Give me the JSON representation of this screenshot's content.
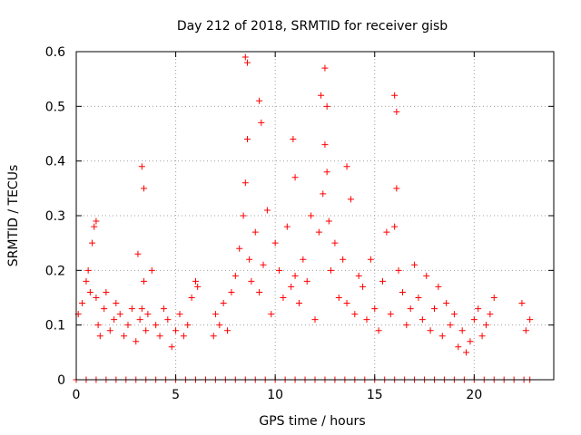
{
  "chart_data": {
    "type": "scatter",
    "title": "Day 212 of 2018, SRMTID for receiver gisb",
    "xlabel": "GPS time / hours",
    "ylabel": "SRMTID / TECUs",
    "xlim": [
      0,
      24
    ],
    "ylim": [
      0,
      0.6
    ],
    "xticks": [
      0,
      5,
      10,
      15,
      20
    ],
    "xtick_labels": [
      "0",
      "5",
      "10",
      "15",
      "20"
    ],
    "yticks": [
      0,
      0.1,
      0.2,
      0.3,
      0.4,
      0.5,
      0.6
    ],
    "ytick_labels": [
      "0",
      "0.1",
      "0.2",
      "0.3",
      "0.4",
      "0.5",
      "0.6"
    ],
    "grid": true,
    "marker": "+",
    "color": "#ff0000",
    "series": [
      {
        "name": "SRMTID",
        "x": [
          0.1,
          0.3,
          0.5,
          0.6,
          0.7,
          0.8,
          0.9,
          1.0,
          1.1,
          1.2,
          1.4,
          1.5,
          1.7,
          1.9,
          2.0,
          2.2,
          2.4,
          2.6,
          2.8,
          3.0,
          3.1,
          3.2,
          3.3,
          3.4,
          3.5,
          3.6,
          3.8,
          4.0,
          4.2,
          4.4,
          4.6,
          4.8,
          5.0,
          5.2,
          5.4,
          5.6,
          5.8,
          6.0,
          6.1,
          6.9,
          7.0,
          7.2,
          7.4,
          7.6,
          7.8,
          8.0,
          8.2,
          8.4,
          8.5,
          8.6,
          8.7,
          8.8,
          9.0,
          9.2,
          9.4,
          9.6,
          9.8,
          10.0,
          10.2,
          10.4,
          10.6,
          10.8,
          11.0,
          11.2,
          11.4,
          11.6,
          11.8,
          12.0,
          12.2,
          12.4,
          12.5,
          12.6,
          12.7,
          12.8,
          13.0,
          13.2,
          13.4,
          13.6,
          13.8,
          14.0,
          14.2,
          14.4,
          14.6,
          14.8,
          15.0,
          15.2,
          15.4,
          15.6,
          15.8,
          16.0,
          16.1,
          16.2,
          16.4,
          16.6,
          16.8,
          17.0,
          17.2,
          17.4,
          17.6,
          17.8,
          18.0,
          18.2,
          18.4,
          18.6,
          18.8,
          19.0,
          19.2,
          19.4,
          19.6,
          19.8,
          20.0,
          20.2,
          20.4,
          20.6,
          20.8,
          21.0,
          22.4,
          22.6,
          22.8,
          1.0,
          3.3,
          3.4,
          8.5,
          8.6,
          9.2,
          9.3,
          12.3,
          12.5,
          12.6,
          16.0,
          16.1,
          10.9,
          13.6,
          11.0
        ],
        "y": [
          0.12,
          0.14,
          0.18,
          0.2,
          0.16,
          0.25,
          0.28,
          0.15,
          0.1,
          0.08,
          0.13,
          0.16,
          0.09,
          0.11,
          0.14,
          0.12,
          0.08,
          0.1,
          0.13,
          0.07,
          0.23,
          0.11,
          0.13,
          0.18,
          0.09,
          0.12,
          0.2,
          0.1,
          0.08,
          0.13,
          0.11,
          0.06,
          0.09,
          0.12,
          0.08,
          0.1,
          0.15,
          0.18,
          0.17,
          0.08,
          0.12,
          0.1,
          0.14,
          0.09,
          0.16,
          0.19,
          0.24,
          0.3,
          0.36,
          0.44,
          0.22,
          0.18,
          0.27,
          0.16,
          0.21,
          0.31,
          0.12,
          0.25,
          0.2,
          0.15,
          0.28,
          0.17,
          0.19,
          0.14,
          0.22,
          0.18,
          0.3,
          0.11,
          0.27,
          0.34,
          0.43,
          0.38,
          0.29,
          0.2,
          0.25,
          0.15,
          0.22,
          0.14,
          0.33,
          0.12,
          0.19,
          0.17,
          0.11,
          0.22,
          0.13,
          0.09,
          0.18,
          0.27,
          0.12,
          0.28,
          0.35,
          0.2,
          0.16,
          0.1,
          0.13,
          0.21,
          0.15,
          0.11,
          0.19,
          0.09,
          0.13,
          0.17,
          0.08,
          0.14,
          0.1,
          0.12,
          0.06,
          0.09,
          0.05,
          0.07,
          0.11,
          0.13,
          0.08,
          0.1,
          0.12,
          0.15,
          0.14,
          0.09,
          0.11,
          0.29,
          0.39,
          0.35,
          0.59,
          0.58,
          0.51,
          0.47,
          0.52,
          0.57,
          0.5,
          0.52,
          0.49,
          0.44,
          0.39,
          0.37
        ],
        "zeros_x": [
          0.0,
          0.5,
          1.0,
          1.5,
          2.0,
          2.5,
          3.0,
          3.5,
          4.0,
          4.5,
          5.0,
          5.5,
          6.0,
          6.5,
          7.0,
          7.5,
          8.0,
          8.5,
          9.0,
          9.5,
          10.0,
          10.5,
          11.0,
          11.5,
          12.0,
          12.5,
          13.0,
          13.5,
          14.0,
          14.5,
          15.0,
          15.5,
          16.0,
          16.5,
          17.0,
          17.5,
          18.0,
          18.5,
          19.0,
          19.5,
          20.0,
          20.5,
          21.0,
          21.5,
          22.0,
          22.5,
          22.8
        ]
      }
    ]
  }
}
